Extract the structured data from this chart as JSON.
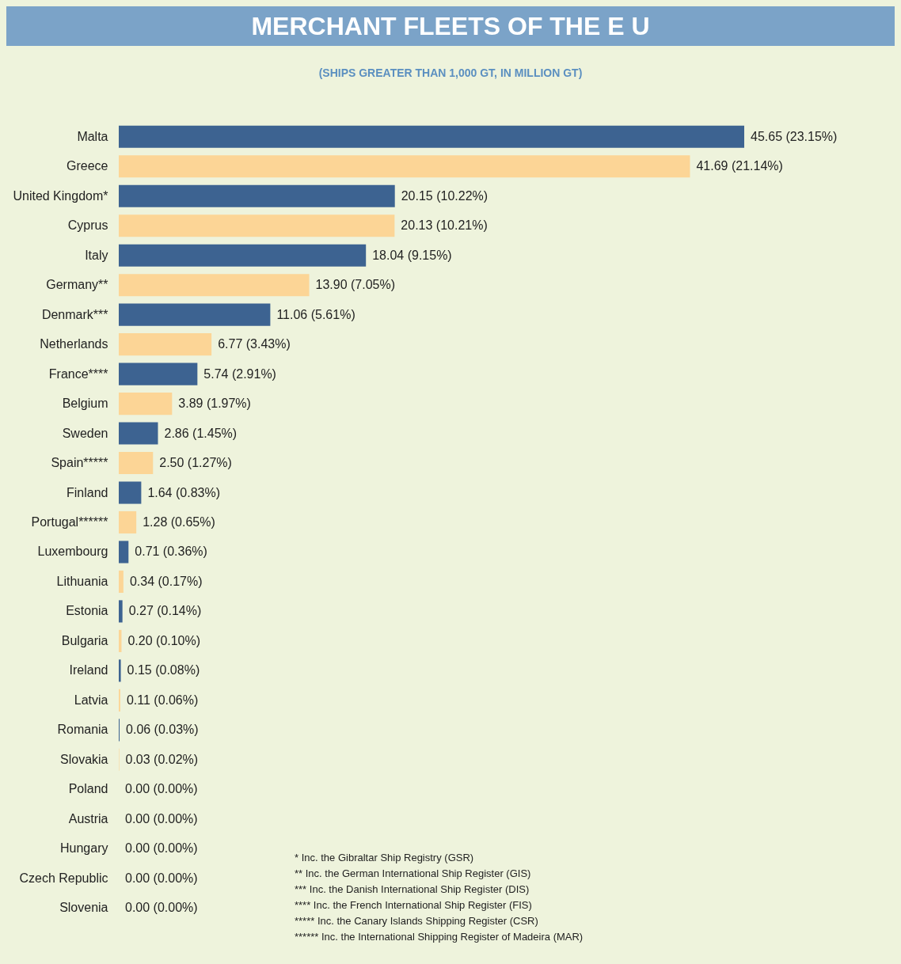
{
  "chart_data": {
    "type": "bar",
    "orientation": "horizontal",
    "title": "MERCHANT FLEETS OF THE E U",
    "subtitle": "(SHIPS GREATER THAN 1,000 GT, IN MILLION GT)",
    "categories": [
      "Malta",
      "Greece",
      "United Kingdom*",
      "Cyprus",
      "Italy",
      "Germany**",
      "Denmark***",
      "Netherlands",
      "France****",
      "Belgium",
      "Sweden",
      "Spain*****",
      "Finland",
      "Portugal******",
      "Luxembourg",
      "Lithuania",
      "Estonia",
      "Bulgaria",
      "Ireland",
      "Latvia",
      "Romania",
      "Slovakia",
      "Poland",
      "Austria",
      "Hungary",
      "Czech Republic",
      "Slovenia"
    ],
    "values": [
      45.65,
      41.69,
      20.15,
      20.13,
      18.04,
      13.9,
      11.06,
      6.77,
      5.74,
      3.89,
      2.86,
      2.5,
      1.64,
      1.28,
      0.71,
      0.34,
      0.27,
      0.2,
      0.15,
      0.11,
      0.06,
      0.03,
      0.0,
      0.0,
      0.0,
      0.0,
      0.0
    ],
    "value_labels": [
      "45.65 (23.15%)",
      "41.69 (21.14%)",
      "20.15 (10.22%)",
      "20.13 (10.21%)",
      "18.04 (9.15%)",
      "13.90 (7.05%)",
      "11.06 (5.61%)",
      "6.77 (3.43%)",
      "5.74 (2.91%)",
      "3.89 (1.97%)",
      "2.86 (1.45%)",
      "2.50 (1.27%)",
      "1.64 (0.83%)",
      "1.28 (0.65%)",
      "0.71 (0.36%)",
      "0.34 (0.17%)",
      "0.27 (0.14%)",
      "0.20 (0.10%)",
      "0.15 (0.08%)",
      "0.11 (0.06%)",
      "0.06 (0.03%)",
      "0.03 (0.02%)",
      "0.00 (0.00%)",
      "0.00 (0.00%)",
      "0.00 (0.00%)",
      "0.00 (0.00%)",
      "0.00 (0.00%)"
    ],
    "colors": [
      "#3d6391",
      "#fcd596",
      "#3d6391",
      "#fcd596",
      "#3d6391",
      "#fcd596",
      "#3d6391",
      "#fcd596",
      "#3d6391",
      "#fcd596",
      "#3d6391",
      "#fcd596",
      "#3d6391",
      "#fcd596",
      "#3d6391",
      "#fcd596",
      "#3d6391",
      "#fcd596",
      "#3d6391",
      "#fcd596",
      "#3d6391",
      "#fcd596",
      "#3d6391",
      "#fcd596",
      "#3d6391",
      "#fcd596",
      "#3d6391"
    ],
    "annotations": [
      "* Inc. the Gibraltar Ship Registry (GSR)",
      "** Inc. the German International Ship Register (GIS)",
      "*** Inc. the Danish International Ship Register (DIS)",
      "**** Inc. the French International Ship Register (FIS)",
      "***** Inc. the Canary Islands Shipping Register (CSR)",
      "****** Inc. the International Shipping Register of Madeira (MAR)"
    ]
  }
}
